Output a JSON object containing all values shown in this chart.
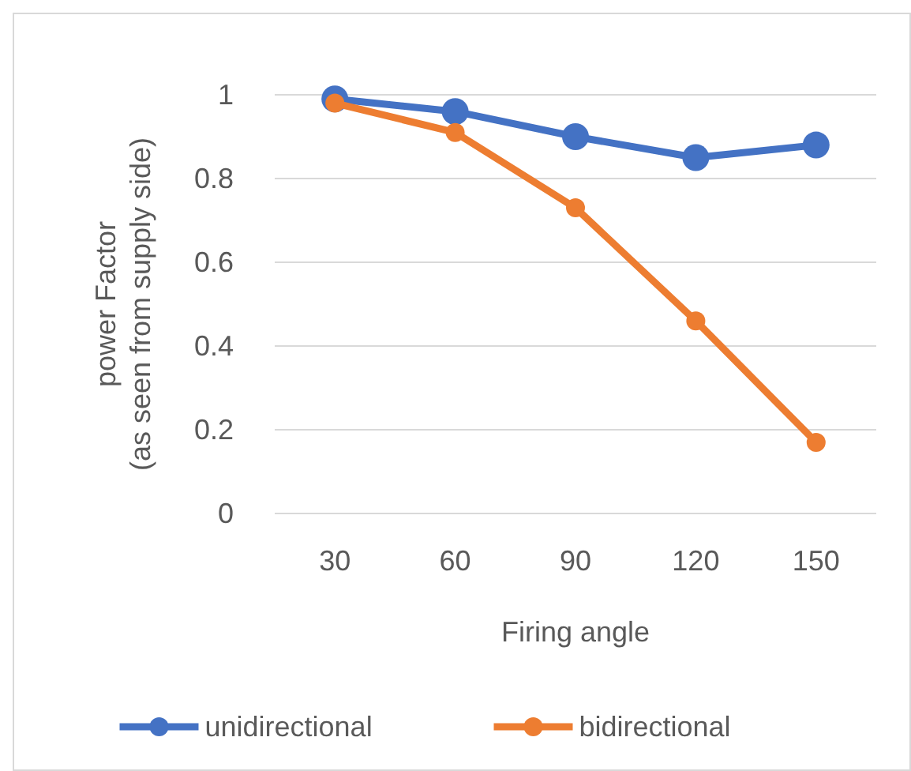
{
  "chart_data": {
    "type": "line",
    "xlabel": "Firing angle",
    "ylabel": "power Factor\n(as seen from supply side)",
    "categories": [
      "30",
      "60",
      "90",
      "120",
      "150"
    ],
    "series": [
      {
        "name": "unidirectional",
        "color": "#4472c4",
        "values": [
          0.99,
          0.96,
          0.9,
          0.85,
          0.88
        ]
      },
      {
        "name": "bidirectional",
        "color": "#ed7d31",
        "values": [
          0.98,
          0.91,
          0.73,
          0.46,
          0.17
        ]
      }
    ],
    "ylim": [
      0,
      1
    ],
    "yticks": [
      0,
      0.2,
      0.4,
      0.6,
      0.8,
      1
    ],
    "grid": "y",
    "legend": "bottom",
    "marker": "circle",
    "line_style": "solid"
  }
}
